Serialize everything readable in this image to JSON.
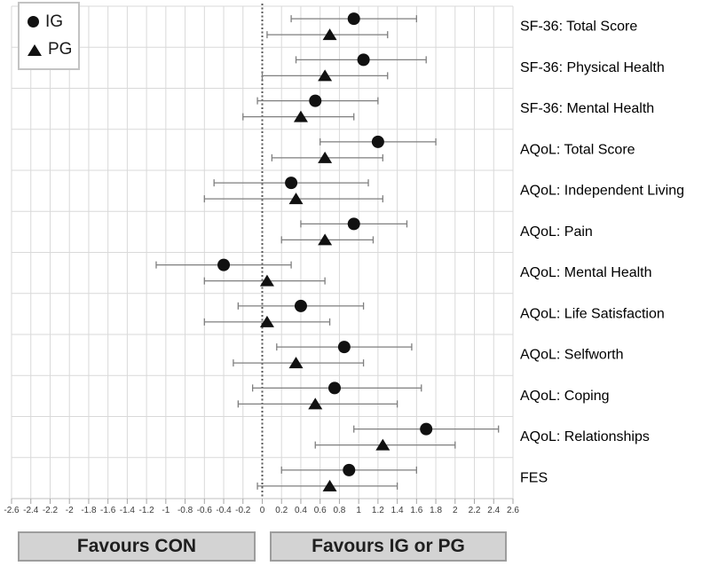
{
  "chart_data": {
    "type": "scatter",
    "subtype": "forest-plot",
    "title": "",
    "xlabel": "",
    "ylabel": "",
    "grid": "on",
    "legend_position": "top-left",
    "xlim": [
      -2.6,
      2.6
    ],
    "xtick_step": 0.2,
    "xticks": [
      "-2.6",
      "-2.4",
      "-2.2",
      "-2",
      "-1.8",
      "-1.6",
      "-1.4",
      "-1.2",
      "-1",
      "-0.8",
      "-0.6",
      "-0.4",
      "-0.2",
      "0",
      "0.2",
      "0.4",
      "0.6",
      "0.8",
      "1",
      "1.2",
      "1.4",
      "1.6",
      "1.8",
      "2",
      "2.2",
      "2.4",
      "2.6"
    ],
    "zero_line": 0,
    "categories": [
      "SF-36: Total Score",
      "SF-36: Physical Health",
      "SF-36: Mental Health",
      "AQoL: Total Score",
      "AQoL: Independent Living",
      "AQoL: Pain",
      "AQoL: Mental Health",
      "AQoL: Life Satisfaction",
      "AQoL: Selfworth",
      "AQoL: Coping",
      "AQoL: Relationships",
      "FES"
    ],
    "series": [
      {
        "name": "IG",
        "marker": "circle",
        "values": [
          0.95,
          1.05,
          0.55,
          1.2,
          0.3,
          0.95,
          -0.4,
          0.4,
          0.85,
          0.75,
          1.7,
          0.9
        ],
        "ci_lower": [
          0.3,
          0.35,
          -0.05,
          0.6,
          -0.5,
          0.4,
          -1.1,
          -0.25,
          0.15,
          -0.1,
          0.95,
          0.2
        ],
        "ci_upper": [
          1.6,
          1.7,
          1.2,
          1.8,
          1.1,
          1.5,
          0.3,
          1.05,
          1.55,
          1.65,
          2.45,
          1.6
        ]
      },
      {
        "name": "PG",
        "marker": "triangle",
        "values": [
          0.7,
          0.65,
          0.4,
          0.65,
          0.35,
          0.65,
          0.05,
          0.05,
          0.35,
          0.55,
          1.25,
          0.7
        ],
        "ci_lower": [
          0.05,
          0.0,
          -0.2,
          0.1,
          -0.6,
          0.2,
          -0.6,
          -0.6,
          -0.3,
          -0.25,
          0.55,
          -0.05
        ],
        "ci_upper": [
          1.3,
          1.3,
          0.95,
          1.25,
          1.25,
          1.15,
          0.65,
          0.7,
          1.05,
          1.4,
          2.0,
          1.4
        ]
      }
    ],
    "colors": {
      "marker": "#111111",
      "error_bar": "#7f7f7f",
      "gridline": "#d9d9d9",
      "axis_line": "#bfbfbf",
      "tick": "#a6a6a6",
      "tick_label": "#3b3b3b",
      "row_label": "#000000",
      "zero_line": "#595959",
      "button_bg": "#d3d3d3",
      "button_border": "#9d9d9d"
    }
  },
  "legend": {
    "items": [
      {
        "label": "IG",
        "marker": "circle"
      },
      {
        "label": "PG",
        "marker": "triangle"
      }
    ]
  },
  "footer": {
    "left_button": "Favours CON",
    "right_button": "Favours IG or PG"
  }
}
